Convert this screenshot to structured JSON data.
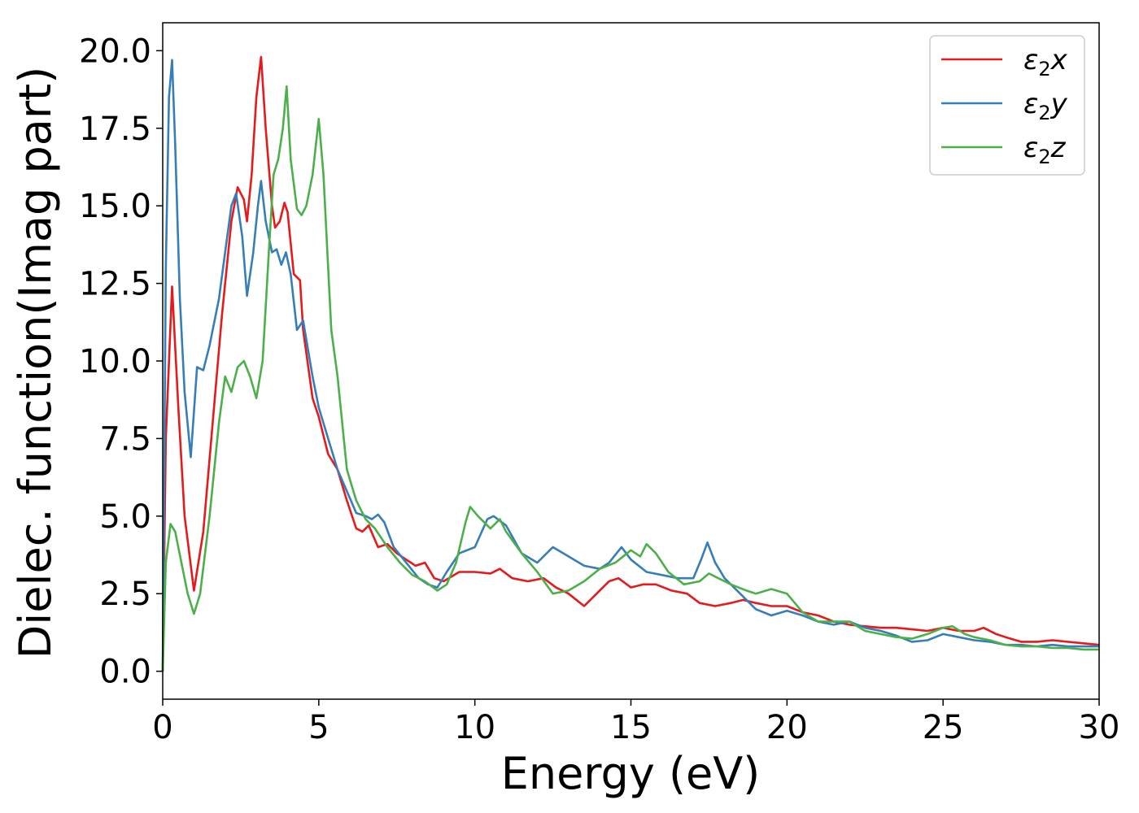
{
  "chart_data": {
    "type": "line",
    "title": "",
    "xlabel": "Energy (eV)",
    "ylabel": "Dielec. function(Imag part)",
    "xlim": [
      0,
      30
    ],
    "ylim": [
      -0.9,
      20.9
    ],
    "xticks": [
      0,
      5,
      10,
      15,
      20,
      25,
      30
    ],
    "xtick_labels": [
      "0",
      "5",
      "10",
      "15",
      "20",
      "25",
      "30"
    ],
    "yticks": [
      0,
      2.5,
      5,
      7.5,
      10,
      12.5,
      15,
      17.5,
      20
    ],
    "ytick_labels": [
      "0.0",
      "2.5",
      "5.0",
      "7.5",
      "10.0",
      "12.5",
      "15.0",
      "17.5",
      "20.0"
    ],
    "grid": false,
    "legend_position": "top-right",
    "series": [
      {
        "name": "ε2x",
        "legend_base": "ε",
        "legend_sub": "2",
        "legend_suffix": "x",
        "color": "#e41a1c",
        "points": [
          [
            0,
            0
          ],
          [
            0.1,
            7.5
          ],
          [
            0.3,
            12.4
          ],
          [
            0.5,
            8.5
          ],
          [
            0.7,
            5.0
          ],
          [
            1.0,
            2.6
          ],
          [
            1.3,
            4.5
          ],
          [
            1.6,
            8.0
          ],
          [
            1.9,
            11.5
          ],
          [
            2.2,
            14.5
          ],
          [
            2.4,
            15.6
          ],
          [
            2.6,
            15.2
          ],
          [
            2.7,
            14.5
          ],
          [
            2.85,
            16.0
          ],
          [
            3.0,
            18.5
          ],
          [
            3.15,
            19.8
          ],
          [
            3.3,
            17.5
          ],
          [
            3.5,
            15.0
          ],
          [
            3.6,
            14.3
          ],
          [
            3.75,
            14.5
          ],
          [
            3.9,
            15.1
          ],
          [
            4.0,
            14.8
          ],
          [
            4.2,
            12.8
          ],
          [
            4.4,
            12.6
          ],
          [
            4.5,
            11.0
          ],
          [
            4.8,
            8.8
          ],
          [
            5.0,
            8.2
          ],
          [
            5.3,
            7.0
          ],
          [
            5.6,
            6.5
          ],
          [
            5.9,
            5.5
          ],
          [
            6.2,
            4.6
          ],
          [
            6.4,
            4.5
          ],
          [
            6.6,
            4.7
          ],
          [
            6.9,
            4.0
          ],
          [
            7.2,
            4.1
          ],
          [
            7.5,
            3.8
          ],
          [
            7.8,
            3.6
          ],
          [
            8.1,
            3.4
          ],
          [
            8.4,
            3.5
          ],
          [
            8.7,
            3.0
          ],
          [
            9.0,
            2.9
          ],
          [
            9.5,
            3.2
          ],
          [
            10.0,
            3.2
          ],
          [
            10.5,
            3.15
          ],
          [
            10.8,
            3.3
          ],
          [
            11.2,
            3.0
          ],
          [
            11.7,
            2.9
          ],
          [
            12.2,
            3.0
          ],
          [
            12.6,
            2.7
          ],
          [
            13.0,
            2.5
          ],
          [
            13.5,
            2.1
          ],
          [
            14.0,
            2.6
          ],
          [
            14.3,
            2.9
          ],
          [
            14.6,
            3.0
          ],
          [
            15.0,
            2.7
          ],
          [
            15.4,
            2.8
          ],
          [
            15.8,
            2.8
          ],
          [
            16.3,
            2.6
          ],
          [
            16.8,
            2.5
          ],
          [
            17.2,
            2.2
          ],
          [
            17.7,
            2.1
          ],
          [
            18.2,
            2.2
          ],
          [
            18.6,
            2.3
          ],
          [
            19.0,
            2.2
          ],
          [
            19.5,
            2.1
          ],
          [
            20.0,
            2.1
          ],
          [
            20.5,
            1.9
          ],
          [
            21.0,
            1.8
          ],
          [
            21.5,
            1.6
          ],
          [
            22.0,
            1.5
          ],
          [
            22.5,
            1.45
          ],
          [
            23.0,
            1.4
          ],
          [
            23.5,
            1.4
          ],
          [
            24.0,
            1.35
          ],
          [
            24.5,
            1.3
          ],
          [
            25.0,
            1.4
          ],
          [
            25.5,
            1.3
          ],
          [
            26.0,
            1.3
          ],
          [
            26.3,
            1.4
          ],
          [
            26.7,
            1.2
          ],
          [
            27.0,
            1.1
          ],
          [
            27.5,
            0.95
          ],
          [
            28.0,
            0.95
          ],
          [
            28.5,
            1.0
          ],
          [
            29.0,
            0.95
          ],
          [
            29.5,
            0.9
          ],
          [
            30.0,
            0.85
          ]
        ]
      },
      {
        "name": "ε2y",
        "legend_base": "ε",
        "legend_sub": "2",
        "legend_suffix": "y",
        "color": "#377eb8",
        "points": [
          [
            0,
            0
          ],
          [
            0.1,
            13.0
          ],
          [
            0.2,
            18.5
          ],
          [
            0.3,
            19.7
          ],
          [
            0.4,
            17.0
          ],
          [
            0.55,
            12.0
          ],
          [
            0.7,
            9.0
          ],
          [
            0.9,
            6.9
          ],
          [
            1.1,
            9.8
          ],
          [
            1.3,
            9.7
          ],
          [
            1.5,
            10.5
          ],
          [
            1.8,
            12.0
          ],
          [
            2.0,
            13.5
          ],
          [
            2.2,
            15.0
          ],
          [
            2.35,
            15.4
          ],
          [
            2.55,
            14.0
          ],
          [
            2.7,
            12.1
          ],
          [
            2.9,
            13.5
          ],
          [
            3.05,
            15.0
          ],
          [
            3.15,
            15.8
          ],
          [
            3.3,
            14.5
          ],
          [
            3.5,
            13.5
          ],
          [
            3.65,
            13.6
          ],
          [
            3.8,
            13.1
          ],
          [
            3.95,
            13.5
          ],
          [
            4.1,
            12.8
          ],
          [
            4.3,
            11.0
          ],
          [
            4.5,
            11.3
          ],
          [
            4.8,
            9.5
          ],
          [
            5.0,
            8.5
          ],
          [
            5.3,
            7.5
          ],
          [
            5.6,
            6.5
          ],
          [
            5.9,
            5.8
          ],
          [
            6.2,
            5.1
          ],
          [
            6.5,
            5.0
          ],
          [
            6.7,
            4.9
          ],
          [
            6.9,
            5.05
          ],
          [
            7.1,
            4.8
          ],
          [
            7.4,
            4.0
          ],
          [
            7.8,
            3.5
          ],
          [
            8.2,
            3.0
          ],
          [
            8.5,
            2.8
          ],
          [
            8.8,
            2.7
          ],
          [
            9.1,
            3.2
          ],
          [
            9.5,
            3.8
          ],
          [
            10.0,
            4.0
          ],
          [
            10.4,
            4.9
          ],
          [
            10.6,
            5.0
          ],
          [
            11.0,
            4.7
          ],
          [
            11.5,
            3.8
          ],
          [
            12.0,
            3.5
          ],
          [
            12.5,
            4.0
          ],
          [
            13.0,
            3.7
          ],
          [
            13.5,
            3.4
          ],
          [
            14.0,
            3.3
          ],
          [
            14.3,
            3.5
          ],
          [
            14.7,
            4.0
          ],
          [
            15.0,
            3.6
          ],
          [
            15.5,
            3.2
          ],
          [
            16.0,
            3.1
          ],
          [
            16.5,
            3.0
          ],
          [
            17.0,
            3.0
          ],
          [
            17.25,
            3.6
          ],
          [
            17.45,
            4.15
          ],
          [
            17.7,
            3.5
          ],
          [
            18.0,
            3.0
          ],
          [
            18.5,
            2.5
          ],
          [
            19.0,
            2.0
          ],
          [
            19.5,
            1.8
          ],
          [
            20.0,
            1.95
          ],
          [
            20.5,
            1.8
          ],
          [
            21.0,
            1.6
          ],
          [
            21.5,
            1.5
          ],
          [
            22.0,
            1.6
          ],
          [
            22.5,
            1.4
          ],
          [
            23.0,
            1.3
          ],
          [
            23.5,
            1.15
          ],
          [
            24.0,
            0.95
          ],
          [
            24.5,
            1.0
          ],
          [
            25.0,
            1.2
          ],
          [
            25.5,
            1.1
          ],
          [
            26.0,
            1.0
          ],
          [
            26.5,
            0.95
          ],
          [
            27.0,
            0.85
          ],
          [
            27.5,
            0.85
          ],
          [
            28.0,
            0.8
          ],
          [
            28.5,
            0.85
          ],
          [
            29.0,
            0.8
          ],
          [
            29.5,
            0.8
          ],
          [
            30.0,
            0.8
          ]
        ]
      },
      {
        "name": "ε2z",
        "legend_base": "ε",
        "legend_sub": "2",
        "legend_suffix": "z",
        "color": "#4daf4a",
        "points": [
          [
            0,
            0
          ],
          [
            0.1,
            3.5
          ],
          [
            0.25,
            4.75
          ],
          [
            0.4,
            4.5
          ],
          [
            0.6,
            3.5
          ],
          [
            0.8,
            2.5
          ],
          [
            1.0,
            1.85
          ],
          [
            1.2,
            2.5
          ],
          [
            1.5,
            5.0
          ],
          [
            1.8,
            8.0
          ],
          [
            2.0,
            9.5
          ],
          [
            2.2,
            9.0
          ],
          [
            2.4,
            9.8
          ],
          [
            2.6,
            10.0
          ],
          [
            2.8,
            9.5
          ],
          [
            3.0,
            8.8
          ],
          [
            3.2,
            10.0
          ],
          [
            3.4,
            13.5
          ],
          [
            3.55,
            16.0
          ],
          [
            3.7,
            16.5
          ],
          [
            3.85,
            17.5
          ],
          [
            3.97,
            18.85
          ],
          [
            4.1,
            16.5
          ],
          [
            4.3,
            14.9
          ],
          [
            4.45,
            14.7
          ],
          [
            4.6,
            15.0
          ],
          [
            4.8,
            16.0
          ],
          [
            5.0,
            17.8
          ],
          [
            5.15,
            16.0
          ],
          [
            5.4,
            11.0
          ],
          [
            5.6,
            9.5
          ],
          [
            5.9,
            6.5
          ],
          [
            6.2,
            5.5
          ],
          [
            6.5,
            4.9
          ],
          [
            6.8,
            4.6
          ],
          [
            7.2,
            4.0
          ],
          [
            7.6,
            3.5
          ],
          [
            8.0,
            3.1
          ],
          [
            8.4,
            2.9
          ],
          [
            8.8,
            2.6
          ],
          [
            9.1,
            2.8
          ],
          [
            9.4,
            3.5
          ],
          [
            9.7,
            4.8
          ],
          [
            9.85,
            5.3
          ],
          [
            10.1,
            5.0
          ],
          [
            10.5,
            4.6
          ],
          [
            10.8,
            4.9
          ],
          [
            11.0,
            4.5
          ],
          [
            11.5,
            3.8
          ],
          [
            12.0,
            3.2
          ],
          [
            12.5,
            2.5
          ],
          [
            13.0,
            2.6
          ],
          [
            13.5,
            2.9
          ],
          [
            14.0,
            3.3
          ],
          [
            14.5,
            3.5
          ],
          [
            15.0,
            3.9
          ],
          [
            15.3,
            3.7
          ],
          [
            15.5,
            4.1
          ],
          [
            15.8,
            3.8
          ],
          [
            16.2,
            3.2
          ],
          [
            16.7,
            2.8
          ],
          [
            17.2,
            2.9
          ],
          [
            17.5,
            3.15
          ],
          [
            17.8,
            3.0
          ],
          [
            18.2,
            2.8
          ],
          [
            18.7,
            2.6
          ],
          [
            19.0,
            2.5
          ],
          [
            19.5,
            2.65
          ],
          [
            20.0,
            2.5
          ],
          [
            20.5,
            1.9
          ],
          [
            21.0,
            1.6
          ],
          [
            21.5,
            1.6
          ],
          [
            22.0,
            1.6
          ],
          [
            22.5,
            1.3
          ],
          [
            23.0,
            1.2
          ],
          [
            23.5,
            1.1
          ],
          [
            24.0,
            1.05
          ],
          [
            24.5,
            1.2
          ],
          [
            25.0,
            1.4
          ],
          [
            25.3,
            1.45
          ],
          [
            25.7,
            1.2
          ],
          [
            26.0,
            1.1
          ],
          [
            26.5,
            1.0
          ],
          [
            27.0,
            0.85
          ],
          [
            27.5,
            0.8
          ],
          [
            28.0,
            0.8
          ],
          [
            28.5,
            0.75
          ],
          [
            29.0,
            0.75
          ],
          [
            29.5,
            0.7
          ],
          [
            30.0,
            0.7
          ]
        ]
      }
    ]
  }
}
